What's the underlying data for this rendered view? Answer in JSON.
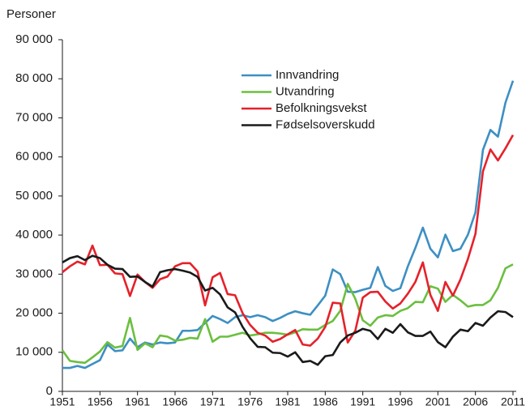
{
  "chart_data": {
    "type": "line",
    "y_label": "Personer",
    "x": [
      1951,
      1952,
      1953,
      1954,
      1955,
      1956,
      1957,
      1958,
      1959,
      1960,
      1961,
      1962,
      1963,
      1964,
      1965,
      1966,
      1967,
      1968,
      1969,
      1970,
      1971,
      1972,
      1973,
      1974,
      1975,
      1976,
      1977,
      1978,
      1979,
      1980,
      1981,
      1982,
      1983,
      1984,
      1985,
      1986,
      1987,
      1988,
      1989,
      1990,
      1991,
      1992,
      1993,
      1994,
      1995,
      1996,
      1997,
      1998,
      1999,
      2000,
      2001,
      2002,
      2003,
      2004,
      2005,
      2006,
      2007,
      2008,
      2009,
      2010,
      2011
    ],
    "series": [
      {
        "name": "Innvandring",
        "color": "#3d8fc3",
        "values": [
          6000,
          6000,
          6500,
          6000,
          7000,
          8000,
          12000,
          10300,
          10500,
          13500,
          11300,
          12500,
          12000,
          12500,
          12300,
          12500,
          15500,
          15500,
          15700,
          17500,
          19300,
          18500,
          17500,
          19000,
          19500,
          19000,
          19500,
          19000,
          18000,
          18800,
          19800,
          20500,
          20000,
          19600,
          22000,
          24500,
          31200,
          30000,
          25500,
          25400,
          26000,
          26500,
          31800,
          27000,
          25700,
          26400,
          32000,
          36700,
          41900,
          36500,
          34300,
          40100,
          35900,
          36500,
          40100,
          45800,
          61800,
          66900,
          65200,
          73900,
          79500
        ]
      },
      {
        "name": "Utvandring",
        "color": "#6bbf3f",
        "values": [
          10500,
          7800,
          7500,
          7300,
          8700,
          10200,
          12600,
          11200,
          11600,
          18800,
          10600,
          12300,
          11300,
          14300,
          14000,
          13000,
          13200,
          13700,
          13500,
          18500,
          12700,
          14000,
          14000,
          14500,
          15000,
          14300,
          14600,
          15000,
          15000,
          14800,
          14500,
          15100,
          15900,
          15800,
          15800,
          17000,
          18000,
          20600,
          27500,
          23700,
          18200,
          16800,
          18900,
          19500,
          19300,
          20600,
          21300,
          22900,
          22800,
          26900,
          26300,
          22900,
          24700,
          23300,
          21700,
          22100,
          22100,
          23300,
          26500,
          31500,
          32500
        ]
      },
      {
        "name": "Befolkningsvekst",
        "color": "#e5212b",
        "values": [
          30500,
          32000,
          33200,
          32500,
          37300,
          32300,
          32400,
          30200,
          30000,
          24400,
          29900,
          28000,
          26500,
          28700,
          29400,
          32000,
          32800,
          32800,
          30700,
          22000,
          29200,
          30300,
          24900,
          24600,
          20000,
          17000,
          15000,
          14300,
          12700,
          13400,
          14600,
          15700,
          12000,
          11700,
          13500,
          16500,
          22700,
          22500,
          12500,
          15500,
          24000,
          25400,
          25500,
          23000,
          21200,
          22500,
          25000,
          28000,
          33000,
          24700,
          20600,
          28000,
          24500,
          28600,
          33900,
          40300,
          56300,
          61900,
          59100,
          62200,
          65600
        ]
      },
      {
        "name": "Fødselsoverskudd",
        "color": "#1a1a1a",
        "values": [
          33000,
          34100,
          34600,
          33600,
          34700,
          34100,
          32400,
          31400,
          31300,
          29300,
          29400,
          28000,
          26800,
          30500,
          31000,
          31300,
          30900,
          30400,
          29300,
          25800,
          26500,
          24800,
          21500,
          20200,
          16500,
          13600,
          11400,
          11300,
          9900,
          9800,
          8900,
          10000,
          7500,
          7800,
          6800,
          9000,
          9300,
          12500,
          14300,
          15000,
          16000,
          15500,
          13400,
          16000,
          15000,
          17200,
          15100,
          14200,
          14200,
          15300,
          12600,
          11300,
          14000,
          15800,
          15400,
          17500,
          16800,
          18900,
          20500,
          20300,
          19000
        ]
      }
    ],
    "xlim": [
      1951,
      2011
    ],
    "xticks": [
      1951,
      1956,
      1961,
      1966,
      1971,
      1976,
      1981,
      1986,
      1991,
      1996,
      2001,
      2006,
      2011
    ],
    "ylim": [
      0,
      90000
    ],
    "yticks": [
      0,
      {
        "value": 10000,
        "label": "10 000"
      },
      {
        "value": 20000,
        "label": "20 000"
      },
      {
        "value": 30000,
        "label": "30 000"
      },
      {
        "value": 40000,
        "label": "40 000"
      },
      {
        "value": 50000,
        "label": "50 000"
      },
      {
        "value": 60000,
        "label": "60 000"
      },
      {
        "value": 70000,
        "label": "70 000"
      },
      {
        "value": 80000,
        "label": "80 000"
      },
      {
        "value": 90000,
        "label": "90 000"
      }
    ],
    "grid": false,
    "legend": "upper-center"
  }
}
